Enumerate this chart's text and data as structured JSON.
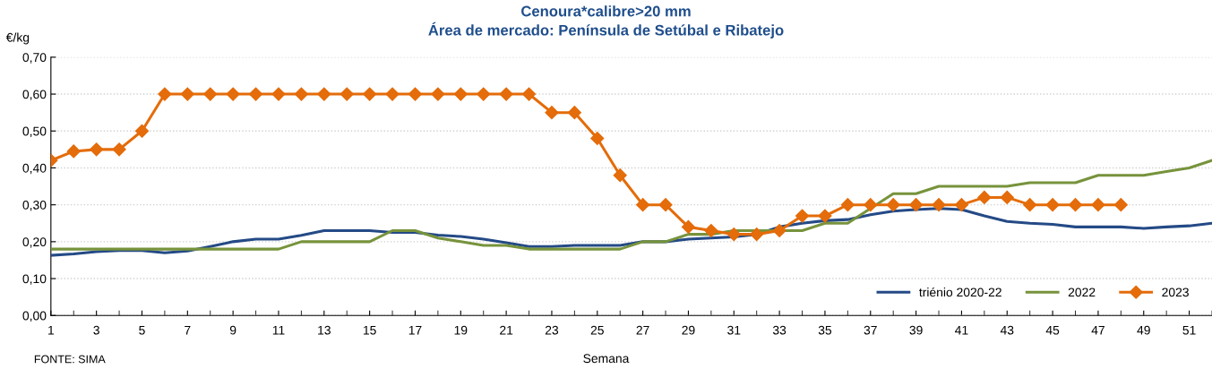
{
  "chart_data": {
    "type": "line",
    "title": "Cenoura*calibre>20 mm\nÁrea de mercado: Península de Setúbal e Ribatejo",
    "ylabel": "€/kg",
    "xlabel": "Semana",
    "annotations": [
      "FONTE: SIMA"
    ],
    "x": [
      1,
      2,
      3,
      4,
      5,
      6,
      7,
      8,
      9,
      10,
      11,
      12,
      13,
      14,
      15,
      16,
      17,
      18,
      19,
      20,
      21,
      22,
      23,
      24,
      25,
      26,
      27,
      28,
      29,
      30,
      31,
      32,
      33,
      34,
      35,
      36,
      37,
      38,
      39,
      40,
      41,
      42,
      43,
      44,
      45,
      46,
      47,
      48,
      49,
      50,
      51,
      52
    ],
    "series": [
      {
        "name": "triénio 2020-22",
        "color": "#244a86",
        "marker": "none",
        "values": [
          0.163,
          0.167,
          0.173,
          0.176,
          0.176,
          0.17,
          0.175,
          0.187,
          0.2,
          0.207,
          0.207,
          0.217,
          0.23,
          0.23,
          0.23,
          0.225,
          0.225,
          0.218,
          0.214,
          0.207,
          0.197,
          0.187,
          0.187,
          0.19,
          0.19,
          0.19,
          0.2,
          0.2,
          0.207,
          0.21,
          0.213,
          0.22,
          0.24,
          0.25,
          0.257,
          0.26,
          0.273,
          0.283,
          0.287,
          0.29,
          0.287,
          0.27,
          0.255,
          0.25,
          0.247,
          0.24,
          0.24,
          0.24,
          0.236,
          0.24,
          0.243,
          0.25
        ]
      },
      {
        "name": "2022",
        "color": "#77933c",
        "marker": "none",
        "values": [
          0.18,
          0.18,
          0.18,
          0.18,
          0.18,
          0.18,
          0.18,
          0.18,
          0.18,
          0.18,
          0.18,
          0.2,
          0.2,
          0.2,
          0.2,
          0.23,
          0.23,
          0.21,
          0.2,
          0.19,
          0.19,
          0.18,
          0.18,
          0.18,
          0.18,
          0.18,
          0.2,
          0.2,
          0.22,
          0.22,
          0.23,
          0.23,
          0.23,
          0.23,
          0.25,
          0.25,
          0.29,
          0.33,
          0.33,
          0.35,
          0.35,
          0.35,
          0.35,
          0.36,
          0.36,
          0.36,
          0.38,
          0.38,
          0.38,
          0.39,
          0.4,
          0.42
        ]
      },
      {
        "name": "2023",
        "color": "#e46c0a",
        "marker": "diamond",
        "values": [
          0.42,
          0.445,
          0.45,
          0.45,
          0.5,
          0.6,
          0.6,
          0.6,
          0.6,
          0.6,
          0.6,
          0.6,
          0.6,
          0.6,
          0.6,
          0.6,
          0.6,
          0.6,
          0.6,
          0.6,
          0.6,
          0.6,
          0.55,
          0.55,
          0.48,
          0.38,
          0.3,
          0.3,
          0.24,
          0.23,
          0.22,
          0.22,
          0.23,
          0.27,
          0.27,
          0.3,
          0.3,
          0.3,
          0.3,
          0.3,
          0.3,
          0.32,
          0.32,
          0.3,
          0.3,
          0.3,
          0.3,
          0.3,
          null,
          null,
          null,
          null
        ]
      }
    ],
    "xlim": [
      1,
      52
    ],
    "xticks": [
      1,
      3,
      5,
      7,
      9,
      11,
      13,
      15,
      17,
      19,
      21,
      23,
      25,
      27,
      29,
      31,
      33,
      35,
      37,
      39,
      41,
      43,
      45,
      47,
      49,
      51
    ],
    "ylim": [
      0,
      0.7
    ],
    "yticks": [
      {
        "value": 0,
        "label": "0,00"
      },
      {
        "value": 0.1,
        "label": "0,10"
      },
      {
        "value": 0.2,
        "label": "0,20"
      },
      {
        "value": 0.3,
        "label": "0,30"
      },
      {
        "value": 0.4,
        "label": "0,40"
      },
      {
        "value": 0.5,
        "label": "0,50"
      },
      {
        "value": 0.6,
        "label": "0,60"
      },
      {
        "value": 0.7,
        "label": "0,70"
      }
    ],
    "grid": "y",
    "legend": "bottom right",
    "line_style": "solid"
  }
}
